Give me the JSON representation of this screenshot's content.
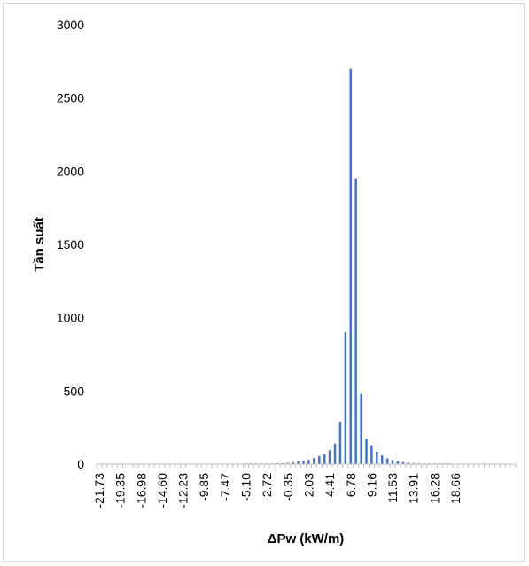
{
  "chart_data": {
    "type": "bar",
    "title": "",
    "xlabel": "ΔPw (kW/m)",
    "ylabel": "Tần suất",
    "ylim": [
      0,
      3000
    ],
    "yticks": [
      "0",
      "500",
      "1000",
      "1500",
      "2000",
      "2500",
      "3000"
    ],
    "x_first_bin": -21.73,
    "x_bin_width": 0.5933,
    "x_bin_count": 80,
    "xtick_labels": [
      "-21.73",
      "-19.35",
      "-16.98",
      "-14.60",
      "-12.23",
      "-9.85",
      "-7.47",
      "-5.10",
      "-2.72",
      "-0.35",
      "2.03",
      "4.41",
      "6.78",
      "9.16",
      "11.53",
      "13.91",
      "16.28",
      "18.66"
    ],
    "values": [
      0,
      0,
      0,
      0,
      0,
      0,
      0,
      0,
      0,
      0,
      0,
      0,
      0,
      0,
      0,
      0,
      0,
      0,
      0,
      0,
      0,
      0,
      0,
      0,
      0,
      0,
      0,
      0,
      1,
      1,
      2,
      2,
      3,
      4,
      5,
      6,
      8,
      12,
      18,
      25,
      30,
      42,
      55,
      70,
      95,
      140,
      290,
      900,
      2700,
      1950,
      480,
      170,
      130,
      85,
      60,
      40,
      28,
      20,
      14,
      10,
      7,
      5,
      4,
      3,
      2,
      1,
      1,
      1,
      0,
      0,
      0,
      0,
      0,
      0,
      0,
      0,
      0,
      0,
      0,
      0
    ],
    "color": "#4472C4",
    "grid": false,
    "legend": "none"
  }
}
